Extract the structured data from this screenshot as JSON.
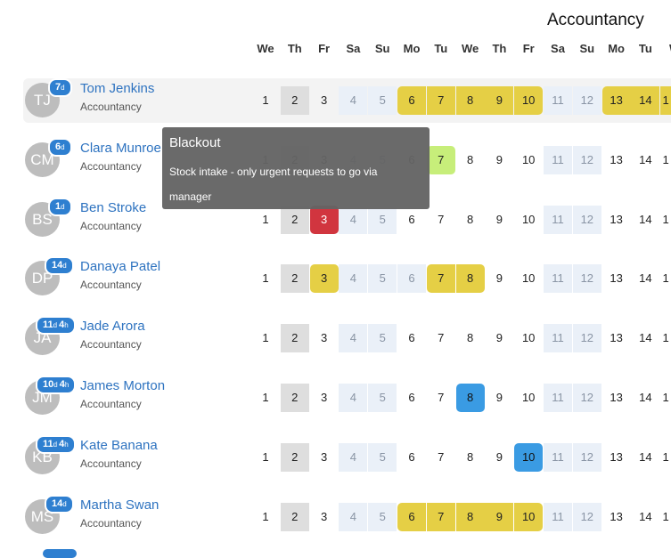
{
  "department": "Accountancy",
  "day_headers": [
    "We",
    "Th",
    "Fr",
    "Sa",
    "Su",
    "Mo",
    "Tu",
    "We",
    "Th",
    "Fr",
    "Sa",
    "Su",
    "Mo",
    "Tu",
    "W"
  ],
  "people": [
    {
      "initials": "TJ",
      "name": "Tom Jenkins",
      "dept": "Accountancy",
      "badge": {
        "days": "7",
        "hours": ""
      },
      "selected": true,
      "days": [
        "1",
        "2",
        "3",
        "4",
        "5",
        "6",
        "7",
        "8",
        "9",
        "10",
        "11",
        "12",
        "13",
        "14",
        "1"
      ],
      "status": [
        "plain",
        "grey",
        "plain",
        "wk",
        "wk",
        "yellow",
        "yellow",
        "yellow",
        "yellow",
        "yellow",
        "wk",
        "wk",
        "yellow",
        "yellow",
        "yellow"
      ]
    },
    {
      "initials": "CM",
      "name": "Clara Munroe",
      "dept": "Accountancy",
      "badge": {
        "days": "6",
        "hours": ""
      },
      "selected": false,
      "days": [
        "1",
        "2",
        "3",
        "4",
        "5",
        "6",
        "7",
        "8",
        "9",
        "10",
        "11",
        "12",
        "13",
        "14",
        "1"
      ],
      "status": [
        "plain",
        "grey",
        "plain",
        "wk",
        "wk",
        "plain",
        "green",
        "plain",
        "plain",
        "plain",
        "wk",
        "wk",
        "plain",
        "plain",
        "plain"
      ]
    },
    {
      "initials": "BS",
      "name": "Ben Stroke",
      "dept": "Accountancy",
      "badge": {
        "days": "1",
        "hours": ""
      },
      "selected": false,
      "days": [
        "1",
        "2",
        "3",
        "4",
        "5",
        "6",
        "7",
        "8",
        "9",
        "10",
        "11",
        "12",
        "13",
        "14",
        "1"
      ],
      "status": [
        "plain",
        "grey",
        "red",
        "wk",
        "wk",
        "plain",
        "plain",
        "plain",
        "plain",
        "plain",
        "wk",
        "wk",
        "plain",
        "plain",
        "plain"
      ]
    },
    {
      "initials": "DP",
      "name": "Danaya Patel",
      "dept": "Accountancy",
      "badge": {
        "days": "14",
        "hours": ""
      },
      "selected": false,
      "days": [
        "1",
        "2",
        "3",
        "4",
        "5",
        "6",
        "7",
        "8",
        "9",
        "10",
        "11",
        "12",
        "13",
        "14",
        "1"
      ],
      "status": [
        "plain",
        "grey",
        "yellow",
        "wk",
        "wk",
        "wk",
        "yellow",
        "yellow",
        "plain",
        "plain",
        "wk",
        "wk",
        "plain",
        "plain",
        "plain"
      ]
    },
    {
      "initials": "JA",
      "name": "Jade Arora",
      "dept": "Accountancy",
      "badge": {
        "days": "11",
        "hours": "4"
      },
      "selected": false,
      "days": [
        "1",
        "2",
        "3",
        "4",
        "5",
        "6",
        "7",
        "8",
        "9",
        "10",
        "11",
        "12",
        "13",
        "14",
        "1"
      ],
      "status": [
        "plain",
        "grey",
        "plain",
        "wk",
        "wk",
        "plain",
        "plain",
        "plain",
        "plain",
        "plain",
        "wk",
        "wk",
        "plain",
        "plain",
        "plain"
      ]
    },
    {
      "initials": "JM",
      "name": "James Morton",
      "dept": "Accountancy",
      "badge": {
        "days": "10",
        "hours": "4"
      },
      "selected": false,
      "days": [
        "1",
        "2",
        "3",
        "4",
        "5",
        "6",
        "7",
        "8",
        "9",
        "10",
        "11",
        "12",
        "13",
        "14",
        "1"
      ],
      "status": [
        "plain",
        "grey",
        "plain",
        "wk",
        "wk",
        "plain",
        "plain",
        "blue",
        "plain",
        "plain",
        "wk",
        "wk",
        "plain",
        "plain",
        "plain"
      ]
    },
    {
      "initials": "KB",
      "name": "Kate Banana",
      "dept": "Accountancy",
      "badge": {
        "days": "11",
        "hours": "4"
      },
      "selected": false,
      "days": [
        "1",
        "2",
        "3",
        "4",
        "5",
        "6",
        "7",
        "8",
        "9",
        "10",
        "11",
        "12",
        "13",
        "14",
        "1"
      ],
      "status": [
        "plain",
        "grey",
        "plain",
        "wk",
        "wk",
        "plain",
        "plain",
        "plain",
        "plain",
        "blue",
        "wk",
        "wk",
        "plain",
        "plain",
        "plain"
      ]
    },
    {
      "initials": "MS",
      "name": "Martha Swan",
      "dept": "Accountancy",
      "badge": {
        "days": "14",
        "hours": ""
      },
      "selected": false,
      "days": [
        "1",
        "2",
        "3",
        "4",
        "5",
        "6",
        "7",
        "8",
        "9",
        "10",
        "11",
        "12",
        "13",
        "14",
        "1"
      ],
      "status": [
        "plain",
        "grey",
        "plain",
        "wk",
        "wk",
        "yellow",
        "yellow",
        "yellow",
        "yellow",
        "yellow",
        "wk",
        "wk",
        "plain",
        "plain",
        "plain"
      ]
    }
  ],
  "units": {
    "day": "d",
    "hour": "h"
  },
  "tooltip": {
    "title": "Blackout",
    "text": "Stock intake - only urgent requests to go via manager"
  },
  "colors": {
    "accent": "#2e7fd0",
    "name_link": "#2e73c0",
    "leave": "#e5cf45",
    "pending": "#c7ee7a",
    "blocked": "#d1353f",
    "booked": "#3a9be3",
    "weekend": "#eaf0f8",
    "holiday": "#dedede"
  }
}
